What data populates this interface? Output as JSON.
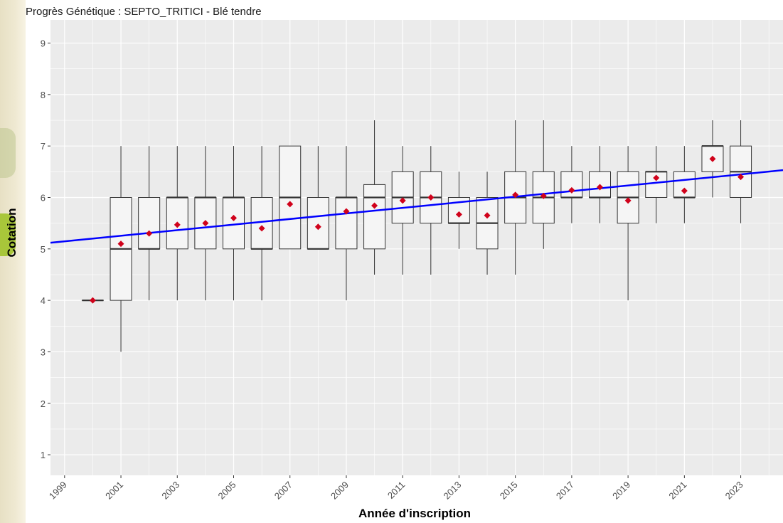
{
  "chart_data": {
    "type": "boxplot",
    "title": "Progrès Génétique : SEPTO_TRITICI - Blé tendre",
    "xlabel": "Année d'inscription",
    "ylabel": "Cotation",
    "xlim": [
      1998.5,
      2024.5
    ],
    "ylim": [
      0.6,
      9.45
    ],
    "x_ticks": [
      1999,
      2001,
      2003,
      2005,
      2007,
      2009,
      2011,
      2013,
      2015,
      2017,
      2019,
      2021,
      2023
    ],
    "y_ticks": [
      1,
      2,
      3,
      4,
      5,
      6,
      7,
      8,
      9
    ],
    "grid": true,
    "boxes": [
      {
        "year": 2000,
        "min": 4,
        "q1": 4,
        "median": 4,
        "q3": 4,
        "max": 4,
        "mean": 4.0
      },
      {
        "year": 2001,
        "min": 3,
        "q1": 4,
        "median": 5,
        "q3": 6,
        "max": 7,
        "mean": 5.1
      },
      {
        "year": 2002,
        "min": 4,
        "q1": 5,
        "median": 5,
        "q3": 6,
        "max": 7,
        "mean": 5.3
      },
      {
        "year": 2003,
        "min": 4,
        "q1": 5,
        "median": 6,
        "q3": 6,
        "max": 7,
        "mean": 5.47
      },
      {
        "year": 2004,
        "min": 4,
        "q1": 5,
        "median": 6,
        "q3": 6,
        "max": 7,
        "mean": 5.5
      },
      {
        "year": 2005,
        "min": 4,
        "q1": 5,
        "median": 6,
        "q3": 6,
        "max": 7,
        "mean": 5.6
      },
      {
        "year": 2006,
        "min": 4,
        "q1": 5,
        "median": 5,
        "q3": 6,
        "max": 7,
        "mean": 5.4
      },
      {
        "year": 2007,
        "min": 5,
        "q1": 5,
        "median": 6,
        "q3": 7,
        "max": 7,
        "mean": 5.87
      },
      {
        "year": 2008,
        "min": 5,
        "q1": 5,
        "median": 5,
        "q3": 6,
        "max": 7,
        "mean": 5.43
      },
      {
        "year": 2009,
        "min": 4,
        "q1": 5,
        "median": 6,
        "q3": 6,
        "max": 7,
        "mean": 5.73
      },
      {
        "year": 2010,
        "min": 4.5,
        "q1": 5,
        "median": 6,
        "q3": 6.25,
        "max": 7.5,
        "mean": 5.84
      },
      {
        "year": 2011,
        "min": 4.5,
        "q1": 5.5,
        "median": 6,
        "q3": 6.5,
        "max": 7,
        "mean": 5.94
      },
      {
        "year": 2012,
        "min": 4.5,
        "q1": 5.5,
        "median": 6,
        "q3": 6.5,
        "max": 7,
        "mean": 6.0
      },
      {
        "year": 2013,
        "min": 5,
        "q1": 5.5,
        "median": 5.5,
        "q3": 6,
        "max": 6.5,
        "mean": 5.67
      },
      {
        "year": 2014,
        "min": 4.5,
        "q1": 5,
        "median": 5.5,
        "q3": 6,
        "max": 6.5,
        "mean": 5.65
      },
      {
        "year": 2015,
        "min": 4.5,
        "q1": 5.5,
        "median": 6,
        "q3": 6.5,
        "max": 7.5,
        "mean": 6.05
      },
      {
        "year": 2016,
        "min": 5,
        "q1": 5.5,
        "median": 6,
        "q3": 6.5,
        "max": 7.5,
        "mean": 6.03
      },
      {
        "year": 2017,
        "min": 5.5,
        "q1": 6,
        "median": 6,
        "q3": 6.5,
        "max": 7,
        "mean": 6.14
      },
      {
        "year": 2018,
        "min": 5.5,
        "q1": 6,
        "median": 6,
        "q3": 6.5,
        "max": 7,
        "mean": 6.2
      },
      {
        "year": 2019,
        "min": 4,
        "q1": 5.5,
        "median": 6,
        "q3": 6.5,
        "max": 7,
        "mean": 5.94
      },
      {
        "year": 2020,
        "min": 5.5,
        "q1": 6,
        "median": 6.5,
        "q3": 6.5,
        "max": 7,
        "mean": 6.38
      },
      {
        "year": 2021,
        "min": 5.5,
        "q1": 6,
        "median": 6,
        "q3": 6.5,
        "max": 7,
        "mean": 6.13
      },
      {
        "year": 2022,
        "min": 6,
        "q1": 6.5,
        "median": 7,
        "q3": 7,
        "max": 7.5,
        "mean": 6.75
      },
      {
        "year": 2023,
        "min": 5.5,
        "q1": 6,
        "median": 6.5,
        "q3": 7,
        "max": 7.5,
        "mean": 6.4
      }
    ],
    "trend_line": {
      "x": [
        1998.5,
        2024.5
      ],
      "y": [
        5.12,
        6.53
      ]
    },
    "colors": {
      "panel": "#ebebeb",
      "grid_major": "#ffffff",
      "box_fill": "#f5f5f5",
      "box_stroke": "#333333",
      "mean_marker": "#d0021b",
      "trend_line": "#0000ff",
      "background": "#f7f3e3"
    }
  }
}
